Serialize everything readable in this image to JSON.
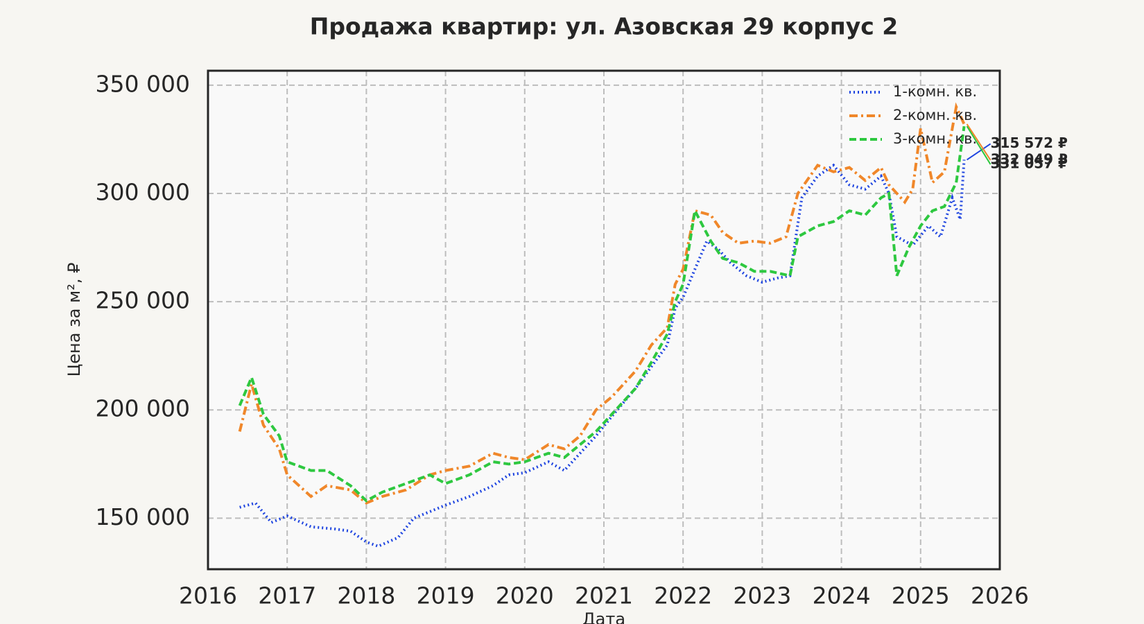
{
  "chart_data": {
    "type": "line",
    "title": "Продажа квартир: ул. Азовская 29 корпус 2",
    "xlabel": "Дата",
    "ylabel": "Цена за м², ₽",
    "xlim": [
      2016,
      2026
    ],
    "xticks": [
      2016,
      2017,
      2018,
      2019,
      2020,
      2021,
      2022,
      2023,
      2024,
      2025,
      2026
    ],
    "ylim": [
      126400,
      356700
    ],
    "yticks": [
      {
        "value": 150000,
        "label": "150 000"
      },
      {
        "value": 200000,
        "label": "200 000"
      },
      {
        "value": 250000,
        "label": "250 000"
      },
      {
        "value": 300000,
        "label": "300 000"
      },
      {
        "value": 350000,
        "label": "350 000"
      }
    ],
    "grid": true,
    "legend": "upper right",
    "series": [
      {
        "name": "1-комн. кв.",
        "color": "#1f45e0",
        "linestyle": "dotted",
        "last_label": "315 572 ₽",
        "x": [
          2016.4,
          2016.6,
          2016.8,
          2017.0,
          2017.3,
          2017.6,
          2017.8,
          2018.0,
          2018.15,
          2018.4,
          2018.6,
          2018.8,
          2019.0,
          2019.3,
          2019.6,
          2019.8,
          2020.0,
          2020.3,
          2020.5,
          2020.7,
          2020.9,
          2021.1,
          2021.4,
          2021.6,
          2021.8,
          2021.9,
          2022.0,
          2022.15,
          2022.3,
          2022.45,
          2022.6,
          2022.8,
          2023.0,
          2023.2,
          2023.35,
          2023.5,
          2023.7,
          2023.9,
          2024.1,
          2024.3,
          2024.5,
          2024.6,
          2024.7,
          2024.9,
          2025.1,
          2025.25,
          2025.4,
          2025.5,
          2025.55
        ],
        "values": [
          155000,
          157000,
          148000,
          151000,
          146000,
          145000,
          144000,
          139000,
          137000,
          141000,
          150000,
          153000,
          156000,
          160000,
          165000,
          170000,
          171000,
          176000,
          172000,
          180000,
          188000,
          197000,
          210000,
          220000,
          230000,
          247000,
          252000,
          265000,
          278000,
          274000,
          268000,
          262000,
          259000,
          261000,
          262000,
          298000,
          308000,
          313000,
          304000,
          302000,
          308000,
          300000,
          280000,
          276000,
          285000,
          280000,
          298000,
          288000,
          315572
        ]
      },
      {
        "name": "2-комн. кв.",
        "color": "#f0872a",
        "linestyle": "dashdot",
        "last_label": "332 049 ₽",
        "x": [
          2016.4,
          2016.55,
          2016.7,
          2016.9,
          2017.0,
          2017.3,
          2017.5,
          2017.8,
          2018.0,
          2018.2,
          2018.5,
          2018.8,
          2019.0,
          2019.3,
          2019.6,
          2019.8,
          2020.0,
          2020.3,
          2020.5,
          2020.7,
          2020.9,
          2021.1,
          2021.4,
          2021.6,
          2021.8,
          2021.9,
          2022.0,
          2022.15,
          2022.35,
          2022.5,
          2022.7,
          2022.9,
          2023.1,
          2023.3,
          2023.45,
          2023.7,
          2023.9,
          2024.1,
          2024.3,
          2024.5,
          2024.6,
          2024.8,
          2024.9,
          2025.0,
          2025.15,
          2025.3,
          2025.45,
          2025.55
        ],
        "values": [
          190000,
          212000,
          193000,
          182000,
          170000,
          160000,
          165000,
          163000,
          157000,
          160000,
          163000,
          170000,
          172000,
          174000,
          180000,
          178000,
          177000,
          184000,
          182000,
          188000,
          200000,
          206000,
          218000,
          230000,
          238000,
          258000,
          265000,
          292000,
          290000,
          282000,
          277000,
          278000,
          277000,
          280000,
          300000,
          313000,
          310000,
          312000,
          306000,
          312000,
          304000,
          296000,
          302000,
          330000,
          305000,
          310000,
          340000,
          332049
        ]
      },
      {
        "name": "3-комн. кв.",
        "color": "#2ec840",
        "linestyle": "dashed",
        "last_label": "331 057 ₽",
        "x": [
          2016.4,
          2016.55,
          2016.7,
          2016.9,
          2017.0,
          2017.3,
          2017.5,
          2017.8,
          2018.0,
          2018.2,
          2018.5,
          2018.8,
          2019.0,
          2019.3,
          2019.6,
          2019.8,
          2020.0,
          2020.3,
          2020.5,
          2020.7,
          2020.9,
          2021.1,
          2021.4,
          2021.6,
          2021.8,
          2021.9,
          2022.0,
          2022.15,
          2022.35,
          2022.5,
          2022.7,
          2022.9,
          2023.1,
          2023.35,
          2023.45,
          2023.7,
          2023.9,
          2024.1,
          2024.3,
          2024.5,
          2024.6,
          2024.7,
          2024.85,
          2025.0,
          2025.15,
          2025.3,
          2025.45,
          2025.55
        ],
        "values": [
          202000,
          215000,
          198000,
          188000,
          176000,
          172000,
          172000,
          165000,
          158000,
          162000,
          166000,
          170000,
          166000,
          170000,
          176000,
          175000,
          176000,
          180000,
          178000,
          184000,
          190000,
          198000,
          210000,
          222000,
          235000,
          250000,
          258000,
          292000,
          278000,
          270000,
          268000,
          264000,
          264000,
          262000,
          280000,
          285000,
          287000,
          292000,
          290000,
          298000,
          300000,
          262000,
          275000,
          285000,
          292000,
          294000,
          305000,
          331057
        ]
      }
    ]
  }
}
